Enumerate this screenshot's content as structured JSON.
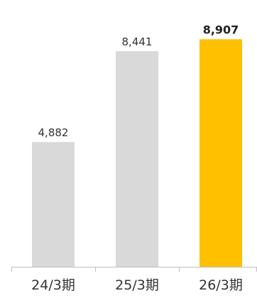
{
  "chart_data": {
    "type": "bar",
    "categories": [
      "24/3期",
      "25/3期",
      "26/3期"
    ],
    "values": [
      4882,
      8441,
      8907
    ],
    "value_labels": [
      "4,882",
      "8,441",
      "8,907"
    ],
    "highlight_index": 2,
    "title": "",
    "xlabel": "",
    "ylabel": "",
    "ylim": [
      0,
      10000
    ],
    "grid": false,
    "legend": "none",
    "colors": {
      "bar": "#d9d9d9",
      "highlight": "#ffc000",
      "axis": "#bfbfbf"
    }
  }
}
